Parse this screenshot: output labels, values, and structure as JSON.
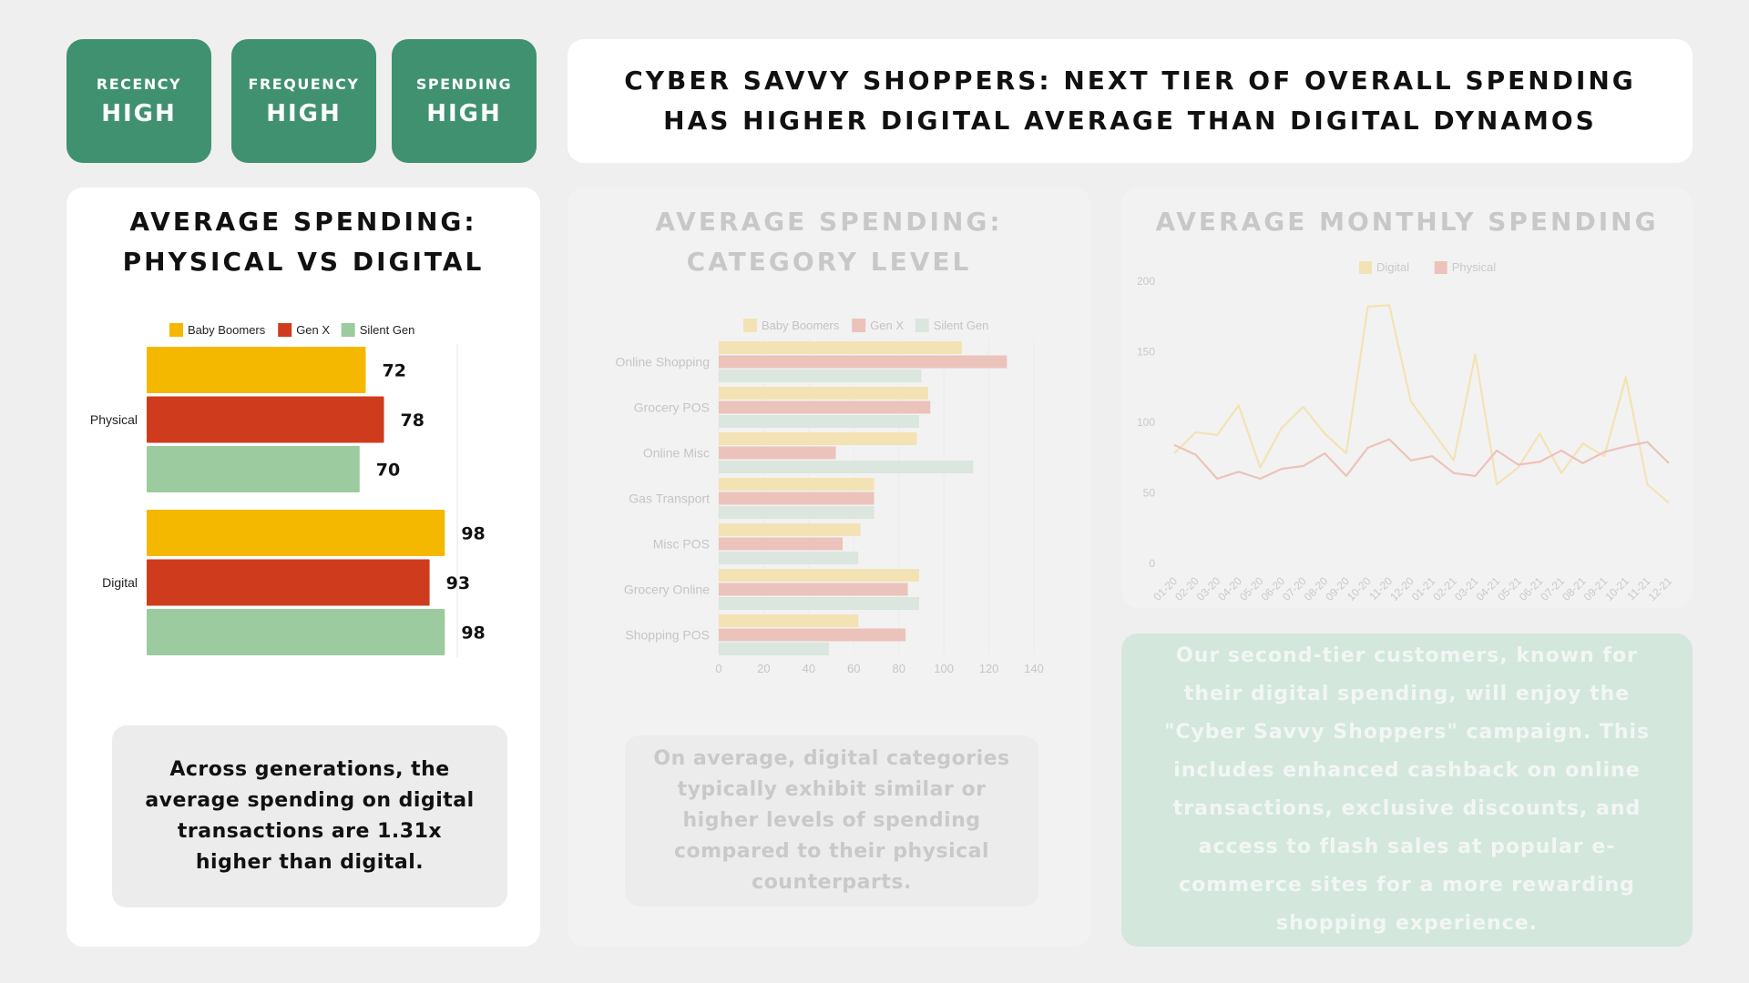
{
  "badges": [
    {
      "key": "RECENCY",
      "value": "HIGH"
    },
    {
      "key": "FREQUENCY",
      "value": "HIGH"
    },
    {
      "key": "SPENDING",
      "value": "HIGH"
    }
  ],
  "title_line1": "CYBER SAVVY SHOPPERS: NEXT TIER OF OVERALL SPENDING",
  "title_line2": "HAS HIGHER DIGITAL AVERAGE THAN DIGITAL DYNAMOS",
  "panel1": {
    "title_line1": "AVERAGE SPENDING:",
    "title_line2": "PHYSICAL VS DIGITAL",
    "note": "Across generations, the average spending on digital transactions are 1.31x higher than digital."
  },
  "panel2": {
    "title_line1": "AVERAGE SPENDING:",
    "title_line2": "CATEGORY LEVEL",
    "note": "On average, digital categories typically exhibit similar or higher levels of spending compared to their physical counterparts."
  },
  "panel3": {
    "title": "AVERAGE MONTHLY SPENDING",
    "note": "Our second-tier customers, known for their digital spending, will enjoy the \"Cyber Savvy Shoppers\" campaign. This includes enhanced cashback on online transactions, exclusive discounts, and access to flash sales at popular e-commerce sites for a more rewarding shopping experience."
  },
  "colors": {
    "green": "#3f9170",
    "boomers": "#f5b800",
    "genx": "#cf3c1d",
    "silent": "#9ccb9f"
  },
  "chart_data": [
    {
      "type": "bar",
      "orientation": "horizontal",
      "categories": [
        "Physical",
        "Digital"
      ],
      "series": [
        {
          "name": "Baby Boomers",
          "values": [
            72,
            98
          ],
          "color": "#f5b800"
        },
        {
          "name": "Gen X",
          "values": [
            78,
            93
          ],
          "color": "#cf3c1d"
        },
        {
          "name": "Silent Gen",
          "values": [
            70,
            98
          ],
          "color": "#9ccb9f"
        }
      ],
      "data_labels": true,
      "xlim": [
        0,
        100
      ],
      "legend": "top"
    },
    {
      "type": "bar",
      "orientation": "horizontal",
      "categories": [
        "Online Shopping",
        "Grocery POS",
        "Online Misc",
        "Gas Transport",
        "Misc POS",
        "Grocery Online",
        "Shopping POS"
      ],
      "series": [
        {
          "name": "Baby Boomers",
          "values": [
            108,
            93,
            88,
            69,
            63,
            89,
            62
          ],
          "color": "#f3e3b4"
        },
        {
          "name": "Gen X",
          "values": [
            128,
            94,
            52,
            69,
            55,
            84,
            83
          ],
          "color": "#ebc3bb"
        },
        {
          "name": "Silent Gen",
          "values": [
            90,
            89,
            113,
            69,
            62,
            89,
            49
          ],
          "color": "#dae6de"
        }
      ],
      "x_ticks": [
        "0",
        "20",
        "40",
        "60",
        "80",
        "100",
        "120",
        "140"
      ],
      "xlim": [
        0,
        140
      ],
      "legend": "top"
    },
    {
      "type": "line",
      "x": [
        "01-20",
        "02-20",
        "03-20",
        "04-20",
        "05-20",
        "06-20",
        "07-20",
        "08-20",
        "09-20",
        "10-20",
        "11-20",
        "12-20",
        "01-21",
        "02-21",
        "03-21",
        "04-21",
        "05-21",
        "06-21",
        "07-21",
        "08-21",
        "09-21",
        "10-21",
        "11-21",
        "12-21"
      ],
      "series": [
        {
          "name": "Digital",
          "values": [
            78,
            93,
            91,
            112,
            68,
            96,
            111,
            92,
            78,
            182,
            183,
            115,
            94,
            73,
            148,
            56,
            68,
            92,
            64,
            85,
            76,
            132,
            56,
            43
          ],
          "color": "#f3e3b4"
        },
        {
          "name": "Physical",
          "values": [
            84,
            77,
            60,
            65,
            60,
            67,
            69,
            78,
            62,
            82,
            88,
            73,
            76,
            64,
            62,
            80,
            70,
            72,
            80,
            71,
            79,
            83,
            86,
            71
          ],
          "color": "#ebc3bb"
        }
      ],
      "y_ticks": [
        "0",
        "50",
        "100",
        "150",
        "200"
      ],
      "ylim": [
        0,
        200
      ],
      "legend": "top"
    }
  ]
}
